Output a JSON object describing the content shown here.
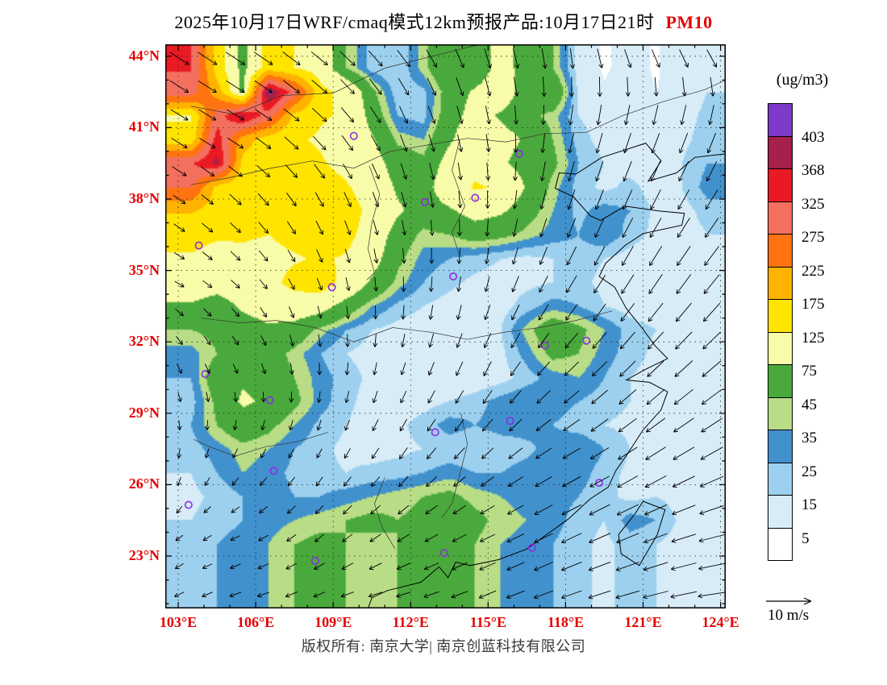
{
  "title": {
    "prefix": "2025年10月17日WRF/cmaq模式12km预报产品:10月17日21时",
    "pollutant": "PM10"
  },
  "footer": {
    "copyright": "版权所有: 南京大学| 南京创蓝科技有限公司"
  },
  "colors": {
    "title": "#000000",
    "pollutant": "#e60000",
    "axis_label": "#e60000",
    "marker": "#8b2be2"
  },
  "chart_data": {
    "type": "heatmap",
    "title": "2025年10月17日WRF/cmaq模式12km预报产品:10月17日21时 PM10",
    "units_label": "(ug/m3)",
    "wind_ref_label": "10 m/s",
    "x_axis": {
      "ticks": [
        "103°E",
        "106°E",
        "109°E",
        "112°E",
        "115°E",
        "118°E",
        "121°E",
        "124°E"
      ],
      "lons": [
        103,
        106,
        109,
        112,
        115,
        118,
        121,
        124
      ]
    },
    "y_axis": {
      "ticks": [
        "44°N",
        "41°N",
        "38°N",
        "35°N",
        "32°N",
        "29°N",
        "26°N",
        "23°N"
      ],
      "lats": [
        44,
        41,
        38,
        35,
        32,
        29,
        26,
        23
      ]
    },
    "legend": {
      "levels": [
        5,
        15,
        25,
        35,
        45,
        75,
        125,
        175,
        225,
        275,
        325,
        368,
        403
      ],
      "labels_top_down": [
        "403",
        "368",
        "325",
        "275",
        "225",
        "175",
        "125",
        "75",
        "45",
        "35",
        "25",
        "15",
        "5"
      ],
      "colors": [
        "#ffffff",
        "#d8ecf8",
        "#9cd0ee",
        "#4191cd",
        "#b8dd86",
        "#4aa93c",
        "#f8fba8",
        "#ffe400",
        "#ffb300",
        "#ff7410",
        "#f4705e",
        "#ea1a24",
        "#a5204a",
        "#7d3ac8"
      ]
    },
    "map_extent": {
      "lon_min": 102.5,
      "lon_max": 124.2,
      "lat_min": 20.8,
      "lat_max": 44.5
    },
    "pm10_grid": {
      "lon_start": 103.5,
      "lon_step": 1,
      "lat_start": 43.5,
      "lat_step": -1,
      "values": [
        [
          330,
          150,
          60,
          150,
          125,
          100,
          45,
          20,
          15,
          40,
          70,
          50,
          90,
          60,
          45,
          10,
          4,
          8,
          4,
          10,
          12
        ],
        [
          300,
          200,
          60,
          420,
          300,
          140,
          110,
          50,
          18,
          22,
          55,
          80,
          100,
          55,
          70,
          12,
          6,
          10,
          5,
          8,
          15
        ],
        [
          120,
          300,
          380,
          300,
          160,
          130,
          120,
          60,
          25,
          20,
          60,
          90,
          70,
          50,
          40,
          15,
          8,
          12,
          6,
          10,
          18
        ],
        [
          140,
          350,
          200,
          150,
          130,
          120,
          100,
          80,
          40,
          35,
          70,
          100,
          90,
          70,
          45,
          20,
          10,
          8,
          5,
          12,
          20
        ],
        [
          320,
          380,
          160,
          130,
          140,
          130,
          110,
          90,
          60,
          50,
          90,
          110,
          80,
          60,
          50,
          25,
          15,
          10,
          8,
          15,
          25
        ],
        [
          280,
          160,
          140,
          130,
          140,
          150,
          130,
          100,
          70,
          60,
          100,
          130,
          120,
          70,
          40,
          20,
          12,
          18,
          10,
          15,
          30
        ],
        [
          180,
          150,
          140,
          135,
          150,
          170,
          150,
          110,
          80,
          60,
          70,
          90,
          80,
          55,
          35,
          22,
          30,
          25,
          12,
          10,
          20
        ],
        [
          140,
          130,
          130,
          125,
          140,
          160,
          140,
          100,
          60,
          40,
          45,
          55,
          50,
          40,
          30,
          25,
          35,
          20,
          12,
          8,
          15
        ],
        [
          120,
          110,
          115,
          110,
          120,
          130,
          120,
          90,
          50,
          30,
          25,
          20,
          15,
          12,
          15,
          20,
          15,
          10,
          8,
          10,
          12
        ],
        [
          100,
          90,
          100,
          110,
          140,
          150,
          110,
          70,
          40,
          25,
          18,
          12,
          10,
          12,
          15,
          18,
          12,
          8,
          6,
          8,
          10
        ],
        [
          70,
          60,
          80,
          90,
          100,
          90,
          60,
          35,
          22,
          15,
          10,
          8,
          10,
          20,
          30,
          25,
          15,
          10,
          8,
          6,
          8
        ],
        [
          45,
          50,
          60,
          70,
          60,
          40,
          25,
          15,
          10,
          8,
          6,
          8,
          15,
          40,
          60,
          50,
          35,
          20,
          15,
          10,
          8
        ],
        [
          30,
          45,
          60,
          55,
          40,
          25,
          15,
          10,
          8,
          6,
          8,
          10,
          12,
          30,
          50,
          45,
          30,
          20,
          12,
          8,
          6
        ],
        [
          25,
          60,
          70,
          60,
          45,
          30,
          20,
          12,
          8,
          6,
          5,
          6,
          10,
          20,
          30,
          35,
          25,
          15,
          10,
          6,
          5
        ],
        [
          20,
          50,
          80,
          70,
          50,
          30,
          18,
          10,
          8,
          10,
          15,
          20,
          30,
          35,
          30,
          25,
          20,
          15,
          10,
          8,
          6
        ],
        [
          25,
          45,
          60,
          50,
          35,
          22,
          15,
          10,
          12,
          20,
          30,
          25,
          30,
          30,
          25,
          20,
          15,
          12,
          10,
          8,
          6
        ],
        [
          20,
          30,
          40,
          35,
          25,
          18,
          12,
          10,
          12,
          15,
          18,
          15,
          18,
          22,
          30,
          35,
          25,
          15,
          10,
          8,
          6
        ],
        [
          15,
          25,
          35,
          30,
          22,
          18,
          15,
          18,
          20,
          25,
          30,
          25,
          25,
          30,
          35,
          30,
          20,
          12,
          10,
          12,
          8
        ],
        [
          12,
          18,
          25,
          30,
          25,
          25,
          30,
          35,
          40,
          45,
          50,
          40,
          35,
          30,
          30,
          25,
          18,
          12,
          15,
          10,
          8
        ],
        [
          15,
          20,
          25,
          30,
          35,
          40,
          45,
          50,
          45,
          50,
          60,
          50,
          40,
          35,
          30,
          20,
          15,
          30,
          25,
          12,
          8
        ],
        [
          18,
          25,
          30,
          35,
          45,
          50,
          45,
          40,
          45,
          50,
          55,
          45,
          35,
          30,
          25,
          18,
          12,
          20,
          15,
          10,
          8
        ]
      ]
    },
    "wind_grid": {
      "u": [
        [
          6,
          6,
          5,
          4,
          2,
          1,
          3,
          4
        ],
        [
          5,
          5,
          4,
          2,
          1,
          -1,
          -2,
          -2
        ],
        [
          3,
          3,
          2,
          1,
          0,
          -2,
          -3,
          -4
        ],
        [
          2,
          2,
          1,
          0,
          -1,
          -3,
          -4,
          -5
        ],
        [
          1,
          1,
          0,
          -1,
          -2,
          -4,
          -5,
          -6
        ],
        [
          0,
          -1,
          -1,
          -2,
          -3,
          -5,
          -6,
          -7
        ],
        [
          -1,
          -2,
          -2,
          -3,
          -4,
          -6,
          -7,
          -8
        ],
        [
          -2,
          -3,
          -3,
          -4,
          -5,
          -6,
          -8,
          -9
        ]
      ],
      "v": [
        [
          -4,
          -4,
          -4,
          -5,
          -6,
          -6,
          -5,
          -5
        ],
        [
          -3,
          -3,
          -4,
          -5,
          -5,
          -6,
          -6,
          -6
        ],
        [
          -2,
          -3,
          -4,
          -4,
          -5,
          -6,
          -6,
          -6
        ],
        [
          -1,
          -2,
          -3,
          -4,
          -4,
          -5,
          -6,
          -6
        ],
        [
          -2,
          -2,
          -3,
          -3,
          -4,
          -4,
          -5,
          -5
        ],
        [
          -2,
          -2,
          -2,
          -3,
          -3,
          -3,
          -4,
          -4
        ],
        [
          -1,
          -1,
          -2,
          -2,
          -2,
          -3,
          -3,
          -2
        ],
        [
          -1,
          -1,
          -1,
          -1,
          -2,
          -2,
          -2,
          -1
        ]
      ]
    },
    "city_markers": [
      [
        103.8,
        36.05
      ],
      [
        109.8,
        40.65
      ],
      [
        112.55,
        37.87
      ],
      [
        116.2,
        39.9
      ],
      [
        114.5,
        38.05
      ],
      [
        108.95,
        34.3
      ],
      [
        113.65,
        34.75
      ],
      [
        117.2,
        31.85
      ],
      [
        118.8,
        32.05
      ],
      [
        104.05,
        30.65
      ],
      [
        106.55,
        29.55
      ],
      [
        112.95,
        28.2
      ],
      [
        115.85,
        28.68
      ],
      [
        106.7,
        26.58
      ],
      [
        103.4,
        25.15
      ],
      [
        108.3,
        22.8
      ],
      [
        113.3,
        23.13
      ],
      [
        116.7,
        23.35
      ],
      [
        119.3,
        26.08
      ]
    ],
    "geo": {
      "coastline": [
        [
          124.2,
          39.9
        ],
        [
          123.0,
          39.75
        ],
        [
          122.3,
          39.1
        ],
        [
          121.2,
          38.75
        ],
        [
          121.7,
          39.6
        ],
        [
          121.1,
          40.35
        ],
        [
          120.4,
          40.1
        ],
        [
          119.4,
          39.75
        ],
        [
          118.4,
          39.05
        ],
        [
          117.75,
          39.1
        ],
        [
          117.6,
          38.45
        ],
        [
          118.3,
          38.1
        ],
        [
          118.95,
          37.3
        ],
        [
          119.35,
          37.1
        ],
        [
          120.3,
          37.7
        ],
        [
          121.6,
          37.5
        ],
        [
          122.6,
          37.4
        ],
        [
          122.5,
          36.9
        ],
        [
          121.0,
          36.55
        ],
        [
          120.3,
          36.05
        ],
        [
          119.55,
          35.3
        ],
        [
          119.3,
          34.75
        ],
        [
          119.9,
          34.3
        ],
        [
          120.35,
          33.4
        ],
        [
          120.95,
          32.6
        ],
        [
          121.45,
          31.85
        ],
        [
          121.95,
          31.3
        ],
        [
          121.1,
          30.85
        ],
        [
          120.35,
          30.4
        ],
        [
          121.25,
          30.3
        ],
        [
          121.95,
          29.9
        ],
        [
          121.7,
          29.15
        ],
        [
          121.0,
          28.3
        ],
        [
          120.4,
          27.3
        ],
        [
          119.95,
          26.6
        ],
        [
          119.65,
          25.9
        ],
        [
          118.95,
          25.4
        ],
        [
          118.1,
          24.55
        ],
        [
          117.2,
          23.85
        ],
        [
          116.5,
          23.3
        ],
        [
          115.4,
          22.85
        ],
        [
          114.3,
          22.6
        ],
        [
          113.75,
          22.75
        ],
        [
          113.45,
          22.1
        ],
        [
          113.1,
          22.55
        ],
        [
          112.4,
          21.9
        ],
        [
          111.1,
          21.55
        ],
        [
          110.5,
          21.25
        ],
        [
          110.35,
          20.8
        ]
      ],
      "taiwan": [
        [
          121.0,
          25.3
        ],
        [
          121.85,
          24.95
        ],
        [
          121.55,
          23.9
        ],
        [
          120.85,
          22.6
        ],
        [
          120.15,
          23.1
        ],
        [
          120.05,
          23.9
        ],
        [
          120.7,
          24.8
        ],
        [
          121.0,
          25.3
        ]
      ],
      "borders": [
        [
          [
            103.5,
            41.9
          ],
          [
            105.2,
            41.55
          ],
          [
            107.0,
            42.35
          ],
          [
            109.0,
            42.45
          ],
          [
            111.0,
            43.5
          ],
          [
            113.2,
            44.1
          ],
          [
            114.7,
            44.5
          ]
        ],
        [
          [
            103.5,
            38.6
          ],
          [
            105.0,
            38.9
          ],
          [
            106.6,
            39.3
          ],
          [
            108.2,
            39.6
          ],
          [
            109.8,
            39.3
          ],
          [
            111.2,
            40.0
          ],
          [
            112.8,
            40.3
          ],
          [
            114.2,
            40.55
          ],
          [
            115.7,
            40.4
          ],
          [
            117.2,
            40.75
          ],
          [
            118.8,
            40.8
          ],
          [
            120.2,
            41.5
          ],
          [
            121.8,
            42.1
          ],
          [
            123.4,
            42.6
          ],
          [
            124.2,
            43.0
          ]
        ],
        [
          [
            110.4,
            39.4
          ],
          [
            110.8,
            38.2
          ],
          [
            110.5,
            37.0
          ],
          [
            110.35,
            35.9
          ],
          [
            110.6,
            34.9
          ],
          [
            110.3,
            34.6
          ]
        ],
        [
          [
            113.9,
            40.5
          ],
          [
            113.6,
            39.2
          ],
          [
            114.1,
            37.7
          ],
          [
            113.6,
            36.6
          ],
          [
            113.9,
            35.6
          ]
        ],
        [
          [
            103.9,
            33.0
          ],
          [
            105.4,
            32.8
          ],
          [
            106.8,
            32.9
          ],
          [
            108.3,
            32.6
          ],
          [
            109.8,
            32.0
          ],
          [
            111.3,
            32.6
          ],
          [
            112.8,
            32.4
          ],
          [
            114.2,
            32.1
          ],
          [
            115.6,
            32.4
          ],
          [
            117.0,
            32.6
          ],
          [
            118.4,
            32.9
          ],
          [
            119.8,
            33.3
          ]
        ],
        [
          [
            108.8,
            28.2
          ],
          [
            107.6,
            27.8
          ],
          [
            106.4,
            27.6
          ],
          [
            105.2,
            27.2
          ],
          [
            104.2,
            27.6
          ],
          [
            103.6,
            27.9
          ]
        ],
        [
          [
            113.95,
            29.0
          ],
          [
            114.2,
            27.7
          ],
          [
            113.9,
            26.4
          ],
          [
            113.6,
            25.2
          ],
          [
            113.2,
            24.6
          ]
        ],
        [
          [
            111.0,
            26.3
          ],
          [
            110.6,
            25.2
          ],
          [
            110.9,
            24.2
          ],
          [
            111.4,
            23.3
          ]
        ]
      ]
    }
  }
}
